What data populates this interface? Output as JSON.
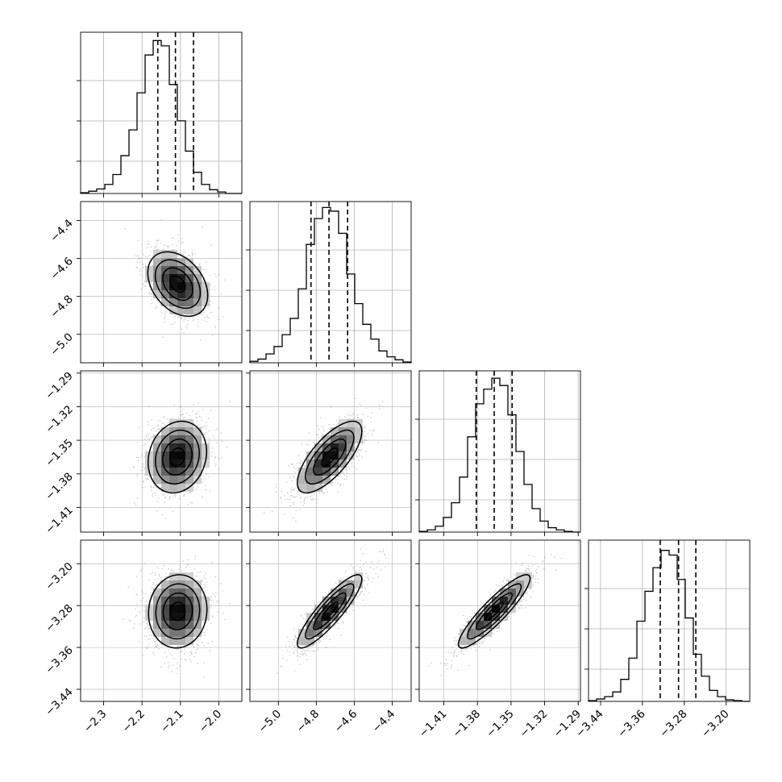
{
  "chart_data": {
    "type": "corner",
    "title": "",
    "grid": true,
    "params": [
      {
        "range": [
          -2.36,
          -1.94
        ],
        "ticks": [
          -2.3,
          -2.2,
          -2.1,
          -2.0
        ],
        "tick_labels": [
          "−2.3",
          "−2.2",
          "−2.1",
          "−2.0"
        ],
        "median": -2.113,
        "quantiles": [
          -2.159,
          -2.113,
          -2.066
        ],
        "hist_counts": [
          1,
          3,
          6,
          12,
          25,
          50,
          84,
          133,
          183,
          202,
          195,
          144,
          96,
          56,
          28,
          12,
          5,
          2,
          0,
          0
        ],
        "hist_ylim": [
          0,
          213
        ]
      },
      {
        "range": [
          -5.15,
          -4.3
        ],
        "ticks": [
          -5.0,
          -4.8,
          -4.6,
          -4.4
        ],
        "tick_labels": [
          "−5.0",
          "−4.8",
          "−4.6",
          "−4.4"
        ],
        "median": -4.733,
        "quantiles": [
          -4.828,
          -4.733,
          -4.635
        ],
        "hist_counts": [
          2,
          5,
          12,
          22,
          38,
          60,
          100,
          160,
          195,
          210,
          205,
          175,
          120,
          80,
          52,
          32,
          16,
          8,
          4,
          1
        ],
        "hist_ylim": [
          0,
          218
        ]
      },
      {
        "range": [
          -1.432,
          -1.288
        ],
        "ticks": [
          -1.41,
          -1.38,
          -1.35,
          -1.32,
          -1.29
        ],
        "tick_labels": [
          "−1.41",
          "−1.38",
          "−1.35",
          "−1.32",
          "−1.29"
        ],
        "median": -1.365,
        "quantiles": [
          -1.381,
          -1.365,
          -1.349
        ],
        "hist_counts": [
          1,
          3,
          8,
          20,
          40,
          75,
          130,
          175,
          195,
          210,
          200,
          160,
          110,
          65,
          32,
          15,
          6,
          3,
          1,
          0
        ],
        "hist_ylim": [
          0,
          220
        ]
      },
      {
        "range": [
          -3.463,
          -3.155
        ],
        "ticks": [
          -3.44,
          -3.36,
          -3.28,
          -3.2
        ],
        "tick_labels": [
          "−3.44",
          "−3.36",
          "−3.28",
          "−3.20"
        ],
        "median": -3.291,
        "quantiles": [
          -3.326,
          -3.291,
          -3.258
        ],
        "hist_counts": [
          1,
          3,
          6,
          12,
          28,
          55,
          102,
          140,
          170,
          192,
          186,
          155,
          106,
          60,
          32,
          14,
          6,
          2,
          1,
          0
        ],
        "hist_ylim": [
          0,
          205
        ]
      }
    ],
    "pairs": [
      {
        "x": 0,
        "y": 1,
        "center": [
          -2.107,
          -4.735
        ],
        "sigma": [
          0.039,
          0.085
        ],
        "rho": -0.35
      },
      {
        "x": 0,
        "y": 2,
        "center": [
          -2.108,
          -1.365
        ],
        "sigma": [
          0.038,
          0.016
        ],
        "rho": 0.15
      },
      {
        "x": 1,
        "y": 2,
        "center": [
          -4.73,
          -1.365
        ],
        "sigma": [
          0.085,
          0.016
        ],
        "rho": 0.72
      },
      {
        "x": 0,
        "y": 3,
        "center": [
          -2.107,
          -3.291
        ],
        "sigma": [
          0.038,
          0.035
        ],
        "rho": 0.05
      },
      {
        "x": 1,
        "y": 3,
        "center": [
          -4.73,
          -3.291
        ],
        "sigma": [
          0.085,
          0.035
        ],
        "rho": 0.88
      },
      {
        "x": 2,
        "y": 3,
        "center": [
          -1.365,
          -3.291
        ],
        "sigma": [
          0.016,
          0.035
        ],
        "rho": 0.9
      }
    ],
    "contour_levels_sigma": [
      0.5,
      1.0,
      1.5,
      2.0
    ],
    "colors": {
      "line": "#000000",
      "grid": "#b0b0b0",
      "points": "#7f7f7f",
      "frame": "#000000",
      "background": "#ffffff"
    }
  }
}
